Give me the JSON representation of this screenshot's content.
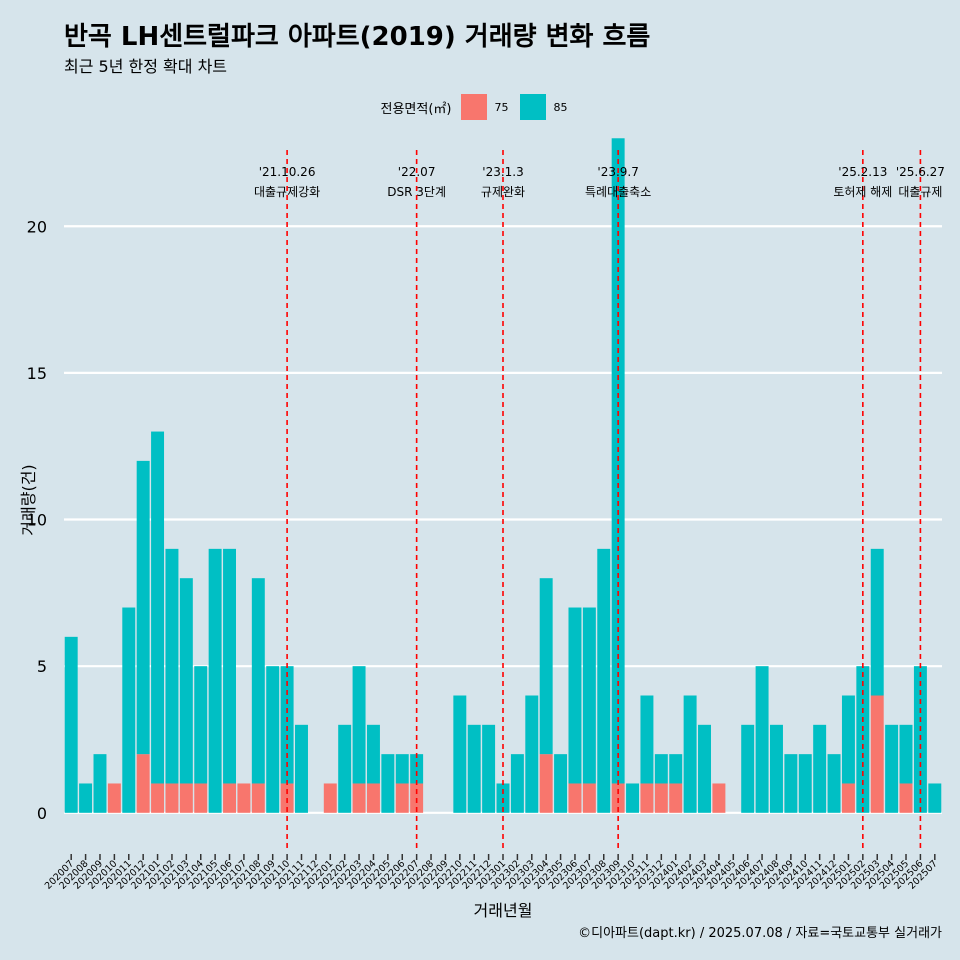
{
  "title": "반곡 LH센트럴파크 아파트(2019) 거래량 변화 흐름",
  "subtitle": "최근 5년 한정 확대 차트",
  "caption": "©디아파트(dapt.kr) / 2025.07.08 / 자료=국토교통부 실거래가",
  "colors": {
    "background": "#d6e4eb",
    "s75": "#f8766d",
    "s85": "#00bfc4",
    "event_line": "#ff0000",
    "grid": "#ffffff"
  },
  "chart_data": {
    "type": "bar",
    "xlabel": "거래년월",
    "ylabel": "거래량(건)",
    "ylim": [
      -1.2,
      22.6
    ],
    "yticks": [
      0,
      5,
      10,
      15,
      20
    ],
    "grid": true,
    "legend": {
      "title": "전용면적(㎡)",
      "position": "top"
    },
    "categories": [
      "202007",
      "202008",
      "202009",
      "202010",
      "202011",
      "202012",
      "202101",
      "202102",
      "202103",
      "202104",
      "202105",
      "202106",
      "202107",
      "202108",
      "202109",
      "202110",
      "202111",
      "202112",
      "202201",
      "202202",
      "202203",
      "202204",
      "202205",
      "202206",
      "202207",
      "202208",
      "202209",
      "202210",
      "202211",
      "202212",
      "202301",
      "202302",
      "202303",
      "202304",
      "202305",
      "202306",
      "202307",
      "202308",
      "202309",
      "202310",
      "202311",
      "202312",
      "202401",
      "202402",
      "202403",
      "202404",
      "202405",
      "202406",
      "202407",
      "202408",
      "202409",
      "202410",
      "202411",
      "202412",
      "202501",
      "202502",
      "202503",
      "202504",
      "202505",
      "202506",
      "202507"
    ],
    "series": [
      {
        "name": "75",
        "values": [
          0,
          0,
          0,
          1,
          0,
          2,
          1,
          1,
          1,
          1,
          0,
          1,
          1,
          1,
          0,
          1,
          0,
          0,
          1,
          0,
          1,
          1,
          0,
          1,
          1,
          0,
          0,
          0,
          0,
          0,
          0,
          0,
          0,
          2,
          0,
          1,
          1,
          0,
          1,
          0,
          1,
          1,
          1,
          0,
          0,
          1,
          0,
          0,
          0,
          0,
          0,
          0,
          0,
          0,
          1,
          0,
          4,
          0,
          1,
          0,
          0
        ]
      },
      {
        "name": "85",
        "values": [
          6,
          1,
          2,
          0,
          7,
          10,
          12,
          8,
          7,
          4,
          9,
          8,
          0,
          7,
          5,
          4,
          3,
          0,
          0,
          3,
          4,
          2,
          2,
          1,
          1,
          0,
          0,
          4,
          3,
          3,
          1,
          2,
          4,
          6,
          2,
          6,
          6,
          9,
          22,
          1,
          3,
          1,
          1,
          4,
          3,
          0,
          0,
          3,
          5,
          3,
          2,
          2,
          3,
          2,
          3,
          5,
          5,
          3,
          2,
          5,
          1
        ]
      }
    ],
    "events": [
      {
        "month": "202110",
        "date": "'21.10.26",
        "label": "대출규제강화"
      },
      {
        "month": "202207",
        "date": "'22.07",
        "label": "DSR 3단계"
      },
      {
        "month": "202301",
        "date": "'23.1.3",
        "label": "규제완화"
      },
      {
        "month": "202309",
        "date": "'23.9.7",
        "label": "특례대출축소"
      },
      {
        "month": "202502",
        "date": "'25.2.13",
        "label": "토허제 해제"
      },
      {
        "month": "202506",
        "date": "'25.6.27",
        "label": "대출규제"
      }
    ]
  }
}
